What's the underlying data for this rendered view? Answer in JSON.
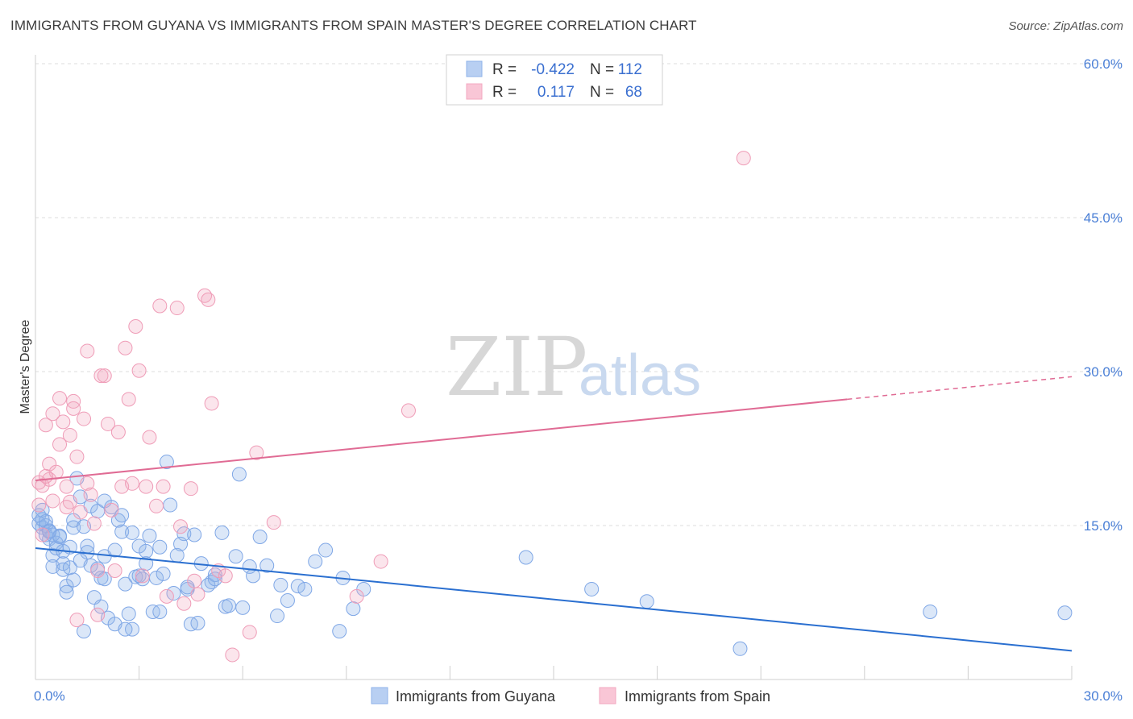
{
  "title": "IMMIGRANTS FROM GUYANA VS IMMIGRANTS FROM SPAIN MASTER'S DEGREE CORRELATION CHART",
  "source": "Source: ZipAtlas.com",
  "watermark": {
    "zip": "ZIP",
    "atlas": "atlas"
  },
  "legend": {
    "r_label": "R =",
    "n_label": "N =",
    "guyana": {
      "r": "-0.422",
      "n": "112"
    },
    "spain": {
      "r": "0.117",
      "n": "68"
    }
  },
  "chart_data": {
    "type": "scatter",
    "title": "IMMIGRANTS FROM GUYANA VS IMMIGRANTS FROM SPAIN MASTER'S DEGREE CORRELATION CHART",
    "ylabel": "Master's Degree",
    "xlabel": "",
    "xlim": [
      0,
      30
    ],
    "ylim": [
      0,
      60
    ],
    "x_tick_labels": [
      "0.0%",
      "30.0%"
    ],
    "y_ticks": [
      15,
      30,
      45,
      60
    ],
    "y_tick_labels": [
      "15.0%",
      "30.0%",
      "45.0%",
      "60.0%"
    ],
    "colors": {
      "guyana": "#8fb3ea",
      "guyana_line": "#2a6fd0",
      "spain": "#f3a8c0",
      "spain_line": "#e06b94"
    },
    "series": [
      {
        "name": "Immigrants from Guyana",
        "color": "#8fb3ea",
        "trend": {
          "x0": 0,
          "y0": 12.8,
          "x1": 30,
          "y1": 2.8
        },
        "points": [
          [
            0.1,
            16.0
          ],
          [
            0.1,
            15.2
          ],
          [
            0.2,
            14.8
          ],
          [
            0.2,
            16.5
          ],
          [
            0.3,
            15.0
          ],
          [
            0.3,
            14.1
          ],
          [
            0.4,
            13.7
          ],
          [
            0.4,
            14.5
          ],
          [
            0.5,
            12.1
          ],
          [
            0.5,
            11.0
          ],
          [
            0.6,
            13.3
          ],
          [
            0.6,
            12.8
          ],
          [
            0.7,
            14.0
          ],
          [
            0.8,
            11.3
          ],
          [
            0.8,
            10.7
          ],
          [
            0.9,
            9.1
          ],
          [
            0.9,
            8.5
          ],
          [
            1.0,
            10.9
          ],
          [
            1.1,
            15.5
          ],
          [
            1.1,
            14.8
          ],
          [
            1.2,
            19.6
          ],
          [
            1.3,
            17.8
          ],
          [
            1.4,
            14.9
          ],
          [
            1.5,
            13.0
          ],
          [
            1.5,
            12.4
          ],
          [
            1.6,
            16.9
          ],
          [
            1.7,
            8.0
          ],
          [
            1.8,
            16.4
          ],
          [
            1.8,
            10.8
          ],
          [
            1.9,
            9.9
          ],
          [
            2.0,
            17.4
          ],
          [
            2.0,
            12.0
          ],
          [
            2.1,
            6.0
          ],
          [
            2.2,
            16.8
          ],
          [
            2.3,
            12.6
          ],
          [
            2.4,
            15.5
          ],
          [
            2.5,
            16.0
          ],
          [
            2.5,
            14.4
          ],
          [
            2.6,
            9.3
          ],
          [
            2.7,
            6.4
          ],
          [
            2.8,
            4.9
          ],
          [
            2.9,
            10.0
          ],
          [
            3.0,
            13.0
          ],
          [
            3.1,
            9.8
          ],
          [
            3.2,
            12.5
          ],
          [
            3.3,
            14.0
          ],
          [
            3.4,
            6.6
          ],
          [
            3.5,
            9.9
          ],
          [
            3.6,
            12.9
          ],
          [
            3.7,
            10.3
          ],
          [
            3.8,
            21.2
          ],
          [
            3.9,
            17.0
          ],
          [
            4.0,
            8.4
          ],
          [
            4.1,
            12.1
          ],
          [
            4.2,
            13.2
          ],
          [
            4.3,
            14.2
          ],
          [
            4.4,
            8.8
          ],
          [
            4.5,
            5.4
          ],
          [
            4.6,
            14.1
          ],
          [
            4.7,
            5.5
          ],
          [
            4.8,
            11.3
          ],
          [
            5.0,
            9.2
          ],
          [
            5.1,
            9.5
          ],
          [
            5.2,
            10.2
          ],
          [
            5.4,
            14.3
          ],
          [
            5.5,
            7.1
          ],
          [
            5.6,
            7.2
          ],
          [
            5.8,
            12.0
          ],
          [
            5.9,
            20.0
          ],
          [
            6.0,
            7.0
          ],
          [
            6.3,
            10.1
          ],
          [
            6.5,
            13.9
          ],
          [
            6.7,
            11.1
          ],
          [
            7.1,
            9.2
          ],
          [
            7.3,
            7.7
          ],
          [
            7.6,
            9.1
          ],
          [
            7.8,
            8.8
          ],
          [
            8.1,
            11.5
          ],
          [
            8.4,
            12.6
          ],
          [
            8.8,
            4.7
          ],
          [
            8.9,
            9.9
          ],
          [
            9.2,
            6.9
          ],
          [
            9.5,
            8.8
          ],
          [
            0.3,
            15.4
          ],
          [
            0.5,
            14.1
          ],
          [
            0.7,
            13.9
          ],
          [
            1.0,
            12.9
          ],
          [
            1.3,
            11.6
          ],
          [
            1.6,
            11.1
          ],
          [
            2.0,
            9.8
          ],
          [
            2.3,
            5.4
          ],
          [
            2.6,
            4.9
          ],
          [
            3.0,
            10.1
          ],
          [
            3.2,
            11.3
          ],
          [
            1.4,
            4.7
          ],
          [
            1.9,
            7.1
          ],
          [
            2.8,
            14.3
          ],
          [
            3.6,
            6.6
          ],
          [
            4.4,
            9.0
          ],
          [
            5.2,
            9.8
          ],
          [
            6.2,
            11.0
          ],
          [
            7.0,
            6.2
          ],
          [
            14.2,
            11.9
          ],
          [
            16.1,
            8.8
          ],
          [
            17.7,
            7.6
          ],
          [
            20.4,
            3.0
          ],
          [
            25.9,
            6.6
          ],
          [
            29.8,
            6.5
          ],
          [
            0.2,
            15.6
          ],
          [
            0.4,
            14.4
          ],
          [
            0.8,
            12.5
          ],
          [
            1.1,
            9.7
          ]
        ]
      },
      {
        "name": "Immigrants from Spain",
        "color": "#f3a8c0",
        "trend": {
          "x0": 0,
          "y0": 19.4,
          "x1": 23.5,
          "y1": 27.3,
          "dash_to": {
            "x": 30,
            "y": 29.5
          }
        },
        "points": [
          [
            0.1,
            19.2
          ],
          [
            0.1,
            17.0
          ],
          [
            0.2,
            18.9
          ],
          [
            0.2,
            14.1
          ],
          [
            0.3,
            24.8
          ],
          [
            0.4,
            21.0
          ],
          [
            0.4,
            19.5
          ],
          [
            0.5,
            25.9
          ],
          [
            0.5,
            17.4
          ],
          [
            0.6,
            20.2
          ],
          [
            0.7,
            27.4
          ],
          [
            0.7,
            22.9
          ],
          [
            0.8,
            25.1
          ],
          [
            0.9,
            18.8
          ],
          [
            1.0,
            23.8
          ],
          [
            1.0,
            17.3
          ],
          [
            1.1,
            27.1
          ],
          [
            1.1,
            26.4
          ],
          [
            1.2,
            21.7
          ],
          [
            1.3,
            16.3
          ],
          [
            1.4,
            25.4
          ],
          [
            1.5,
            32.0
          ],
          [
            1.5,
            19.1
          ],
          [
            1.6,
            18.0
          ],
          [
            1.7,
            15.2
          ],
          [
            1.8,
            10.6
          ],
          [
            1.9,
            29.6
          ],
          [
            2.0,
            29.6
          ],
          [
            2.1,
            24.9
          ],
          [
            2.2,
            16.5
          ],
          [
            2.3,
            10.6
          ],
          [
            2.4,
            24.1
          ],
          [
            2.5,
            18.8
          ],
          [
            2.6,
            32.3
          ],
          [
            2.7,
            27.3
          ],
          [
            2.8,
            19.1
          ],
          [
            2.9,
            34.4
          ],
          [
            3.0,
            30.1
          ],
          [
            3.1,
            10.1
          ],
          [
            3.2,
            18.8
          ],
          [
            3.3,
            23.6
          ],
          [
            3.5,
            16.9
          ],
          [
            3.6,
            36.4
          ],
          [
            3.7,
            18.8
          ],
          [
            3.8,
            8.1
          ],
          [
            4.1,
            36.2
          ],
          [
            4.2,
            14.9
          ],
          [
            4.3,
            7.4
          ],
          [
            4.5,
            18.6
          ],
          [
            4.6,
            9.6
          ],
          [
            4.7,
            8.3
          ],
          [
            4.9,
            37.4
          ],
          [
            5.0,
            37.0
          ],
          [
            5.1,
            26.9
          ],
          [
            5.3,
            10.6
          ],
          [
            5.5,
            10.1
          ],
          [
            5.7,
            2.4
          ],
          [
            6.2,
            4.6
          ],
          [
            6.4,
            22.1
          ],
          [
            6.9,
            15.3
          ],
          [
            10.0,
            11.5
          ],
          [
            10.8,
            26.2
          ],
          [
            1.2,
            5.8
          ],
          [
            1.8,
            6.3
          ],
          [
            0.9,
            16.8
          ],
          [
            20.5,
            50.8
          ],
          [
            9.3,
            8.1
          ],
          [
            0.3,
            19.8
          ]
        ]
      }
    ]
  },
  "bottom_legend": {
    "guyana": "Immigrants from Guyana",
    "spain": "Immigrants from Spain"
  }
}
